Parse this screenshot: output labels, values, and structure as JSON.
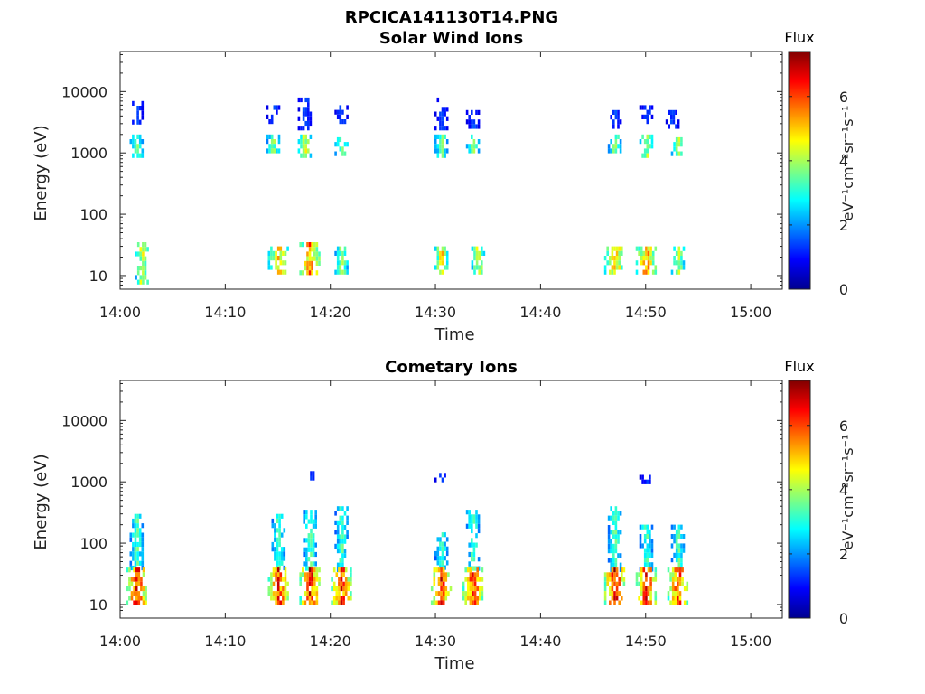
{
  "figure_title": "RPCICA141130T14.PNG",
  "colormap": [
    "#00008f",
    "#0000ff",
    "#0080ff",
    "#00ffff",
    "#80ff80",
    "#ffff00",
    "#ff8000",
    "#ff0000",
    "#800000"
  ],
  "chart_data": [
    {
      "type": "heatmap",
      "title": "Solar Wind Ions",
      "xlabel": "Time",
      "ylabel": "Energy (eV)",
      "x_range": [
        "14:00",
        "15:03"
      ],
      "x_ticks": [
        "14:00",
        "14:10",
        "14:20",
        "14:30",
        "14:40",
        "14:50",
        "15:00"
      ],
      "y_scale": "log",
      "y_range": [
        6,
        45000
      ],
      "y_ticks": [
        {
          "value": 10,
          "label": "10"
        },
        {
          "value": 100,
          "label": "100"
        },
        {
          "value": 1000,
          "label": "1000"
        },
        {
          "value": 10000,
          "label": "10000"
        }
      ],
      "colorbar": {
        "title": "Flux",
        "unit": "eV⁻¹cm⁻²sr⁻¹s⁻¹",
        "range": [
          0,
          7.4
        ],
        "ticks": [
          "0",
          "2",
          "4",
          "6"
        ]
      },
      "clusters": [
        {
          "time": "14:01:30",
          "emin": 3000,
          "emax": 7000,
          "flux": 1.5
        },
        {
          "time": "14:01:30",
          "emin": 900,
          "emax": 2000,
          "flux": 3.8
        },
        {
          "time": "14:02:00",
          "emin": 8,
          "emax": 35,
          "flux": 4.6
        },
        {
          "time": "14:14:30",
          "emin": 3000,
          "emax": 6000,
          "flux": 1.5
        },
        {
          "time": "14:14:30",
          "emin": 1000,
          "emax": 2000,
          "flux": 3.8
        },
        {
          "time": "14:15:00",
          "emin": 12,
          "emax": 30,
          "flux": 5.2
        },
        {
          "time": "14:17:30",
          "emin": 2500,
          "emax": 8000,
          "flux": 1.6
        },
        {
          "time": "14:17:30",
          "emin": 900,
          "emax": 2000,
          "flux": 4.6
        },
        {
          "time": "14:18:00",
          "emin": 12,
          "emax": 35,
          "flux": 5.8
        },
        {
          "time": "14:21:00",
          "emin": 3000,
          "emax": 6000,
          "flux": 1.5
        },
        {
          "time": "14:21:00",
          "emin": 1000,
          "emax": 1800,
          "flux": 3.8
        },
        {
          "time": "14:21:00",
          "emin": 12,
          "emax": 30,
          "flux": 4.0
        },
        {
          "time": "14:30:30",
          "emin": 2500,
          "emax": 8000,
          "flux": 1.5
        },
        {
          "time": "14:30:30",
          "emin": 900,
          "emax": 2000,
          "flux": 3.8
        },
        {
          "time": "14:30:30",
          "emin": 12,
          "emax": 30,
          "flux": 5.0
        },
        {
          "time": "14:33:30",
          "emin": 2500,
          "emax": 5000,
          "flux": 1.5
        },
        {
          "time": "14:33:30",
          "emin": 1000,
          "emax": 2000,
          "flux": 3.8
        },
        {
          "time": "14:34:00",
          "emin": 12,
          "emax": 30,
          "flux": 4.6
        },
        {
          "time": "14:47:00",
          "emin": 2500,
          "emax": 5000,
          "flux": 1.5
        },
        {
          "time": "14:47:00",
          "emin": 1000,
          "emax": 2000,
          "flux": 3.8
        },
        {
          "time": "14:47:00",
          "emin": 12,
          "emax": 30,
          "flux": 5.2
        },
        {
          "time": "14:50:00",
          "emin": 3000,
          "emax": 6000,
          "flux": 1.5
        },
        {
          "time": "14:50:00",
          "emin": 900,
          "emax": 2000,
          "flux": 4.2
        },
        {
          "time": "14:50:00",
          "emin": 12,
          "emax": 30,
          "flux": 5.6
        },
        {
          "time": "14:52:30",
          "emin": 2500,
          "emax": 5000,
          "flux": 1.5
        },
        {
          "time": "14:53:00",
          "emin": 1000,
          "emax": 1800,
          "flux": 4.0
        },
        {
          "time": "14:53:00",
          "emin": 12,
          "emax": 30,
          "flux": 4.2
        }
      ]
    },
    {
      "type": "heatmap",
      "title": "Cometary Ions",
      "xlabel": "Time",
      "ylabel": "Energy (eV)",
      "x_range": [
        "14:00",
        "15:03"
      ],
      "x_ticks": [
        "14:00",
        "14:10",
        "14:20",
        "14:30",
        "14:40",
        "14:50",
        "15:00"
      ],
      "y_scale": "log",
      "y_range": [
        6,
        45000
      ],
      "y_ticks": [
        {
          "value": 10,
          "label": "10"
        },
        {
          "value": 100,
          "label": "100"
        },
        {
          "value": 1000,
          "label": "1000"
        },
        {
          "value": 10000,
          "label": "10000"
        }
      ],
      "colorbar": {
        "title": "Flux",
        "unit": "eV⁻¹cm⁻²sr⁻¹s⁻¹",
        "range": [
          0,
          7.4
        ],
        "ticks": [
          "0",
          "2",
          "4",
          "6"
        ]
      },
      "clusters": [
        {
          "time": "14:01:30",
          "emin": 40,
          "emax": 300,
          "flux": 3.5
        },
        {
          "time": "14:01:30",
          "emin": 10,
          "emax": 40,
          "flux": 6.6
        },
        {
          "time": "14:15:00",
          "emin": 40,
          "emax": 300,
          "flux": 3.5
        },
        {
          "time": "14:15:00",
          "emin": 10,
          "emax": 40,
          "flux": 6.4
        },
        {
          "time": "14:18:00",
          "emin": 40,
          "emax": 350,
          "flux": 3.6
        },
        {
          "time": "14:18:00",
          "emin": 10,
          "emax": 40,
          "flux": 6.5
        },
        {
          "time": "14:18:00",
          "emin": 1100,
          "emax": 1500,
          "flux": 1.4
        },
        {
          "time": "14:21:00",
          "emin": 40,
          "emax": 400,
          "flux": 3.4
        },
        {
          "time": "14:21:00",
          "emin": 10,
          "emax": 40,
          "flux": 6.2
        },
        {
          "time": "14:30:30",
          "emin": 40,
          "emax": 150,
          "flux": 3.2
        },
        {
          "time": "14:30:30",
          "emin": 10,
          "emax": 40,
          "flux": 6.4
        },
        {
          "time": "14:30:30",
          "emin": 1000,
          "emax": 1400,
          "flux": 1.4
        },
        {
          "time": "14:33:30",
          "emin": 40,
          "emax": 350,
          "flux": 3.5
        },
        {
          "time": "14:33:30",
          "emin": 10,
          "emax": 40,
          "flux": 6.4
        },
        {
          "time": "14:47:00",
          "emin": 40,
          "emax": 400,
          "flux": 3.5
        },
        {
          "time": "14:47:00",
          "emin": 10,
          "emax": 40,
          "flux": 6.8
        },
        {
          "time": "14:50:00",
          "emin": 40,
          "emax": 200,
          "flux": 3.4
        },
        {
          "time": "14:50:00",
          "emin": 10,
          "emax": 40,
          "flux": 6.4
        },
        {
          "time": "14:50:00",
          "emin": 1000,
          "emax": 1300,
          "flux": 1.3
        },
        {
          "time": "14:53:00",
          "emin": 40,
          "emax": 200,
          "flux": 3.4
        },
        {
          "time": "14:53:00",
          "emin": 10,
          "emax": 40,
          "flux": 6.2
        }
      ]
    }
  ]
}
